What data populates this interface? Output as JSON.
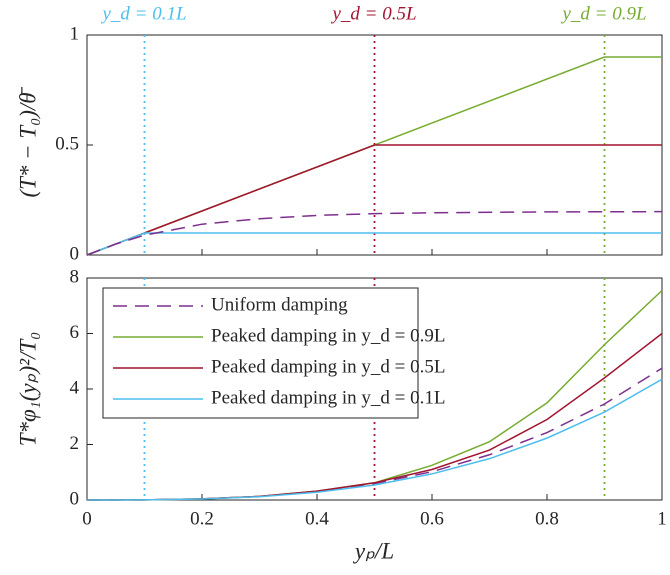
{
  "chart_data": [
    {
      "type": "line",
      "ylabel": "(T* − T₀)/θ̄",
      "xlim": [
        0,
        1
      ],
      "ylim": [
        0,
        1
      ],
      "yticks": [
        0,
        0.5,
        1
      ],
      "annotations": [
        {
          "text": "y_d = 0.1L",
          "x": 0.1,
          "color": "#4dbeee"
        },
        {
          "text": "y_d = 0.5L",
          "x": 0.5,
          "color": "#a2142f"
        },
        {
          "text": "y_d = 0.9L",
          "x": 0.9,
          "color": "#77ac30"
        }
      ],
      "series": [
        {
          "name": "Peaked damping in y_d = 0.9L",
          "color": "#77ac30",
          "dash": false,
          "x": [
            0,
            0.1,
            0.5,
            0.9,
            1
          ],
          "values": [
            0,
            0.1,
            0.5,
            0.9,
            0.9
          ]
        },
        {
          "name": "Peaked damping in y_d = 0.5L",
          "color": "#a2142f",
          "dash": false,
          "x": [
            0,
            0.1,
            0.5,
            0.9,
            1
          ],
          "values": [
            0,
            0.1,
            0.5,
            0.5,
            0.5
          ]
        },
        {
          "name": "Peaked damping in y_d = 0.1L",
          "color": "#4dbeee",
          "dash": false,
          "x": [
            0,
            0.1,
            0.5,
            1
          ],
          "values": [
            0,
            0.1,
            0.1,
            0.1
          ]
        },
        {
          "name": "Uniform damping",
          "color": "#7e2f8e",
          "dash": true,
          "x": [
            0,
            0.05,
            0.1,
            0.2,
            0.3,
            0.4,
            0.5,
            0.6,
            0.8,
            1
          ],
          "values": [
            0,
            0.05,
            0.09,
            0.14,
            0.165,
            0.18,
            0.188,
            0.192,
            0.196,
            0.197
          ]
        }
      ]
    },
    {
      "type": "line",
      "ylabel": "T*φ₁(yₚ)²/T₀",
      "xlabel": "yₚ/L",
      "xlim": [
        0,
        1
      ],
      "ylim": [
        0,
        8
      ],
      "xticks": [
        0,
        0.2,
        0.4,
        0.6,
        0.8,
        1
      ],
      "yticks": [
        0,
        2,
        4,
        6,
        8
      ],
      "legend": "upper left",
      "series": [
        {
          "name": "Uniform damping",
          "color": "#7e2f8e",
          "dash": true,
          "x": [
            0,
            0.1,
            0.2,
            0.3,
            0.4,
            0.5,
            0.6,
            0.7,
            0.8,
            0.9,
            1
          ],
          "values": [
            0,
            0.005,
            0.04,
            0.13,
            0.3,
            0.59,
            1.02,
            1.63,
            2.43,
            3.46,
            4.75
          ]
        },
        {
          "name": "Peaked damping in y_d = 0.9L",
          "color": "#77ac30",
          "dash": false,
          "x": [
            0,
            0.1,
            0.2,
            0.3,
            0.4,
            0.5,
            0.6,
            0.7,
            0.8,
            0.9,
            1
          ],
          "values": [
            0,
            0.005,
            0.04,
            0.13,
            0.32,
            0.62,
            1.25,
            2.1,
            3.5,
            5.6,
            7.55
          ]
        },
        {
          "name": "Peaked damping in y_d = 0.5L",
          "color": "#a2142f",
          "dash": false,
          "x": [
            0,
            0.1,
            0.2,
            0.3,
            0.4,
            0.5,
            0.6,
            0.7,
            0.8,
            0.9,
            1
          ],
          "values": [
            0,
            0.005,
            0.04,
            0.13,
            0.32,
            0.62,
            1.1,
            1.8,
            2.9,
            4.4,
            6.0
          ]
        },
        {
          "name": "Peaked damping in y_d = 0.1L",
          "color": "#4dbeee",
          "dash": false,
          "x": [
            0,
            0.1,
            0.2,
            0.3,
            0.4,
            0.5,
            0.6,
            0.7,
            0.8,
            0.9,
            1
          ],
          "values": [
            0,
            0.004,
            0.035,
            0.117,
            0.278,
            0.54,
            0.94,
            1.49,
            2.23,
            3.17,
            4.35
          ]
        }
      ]
    }
  ]
}
